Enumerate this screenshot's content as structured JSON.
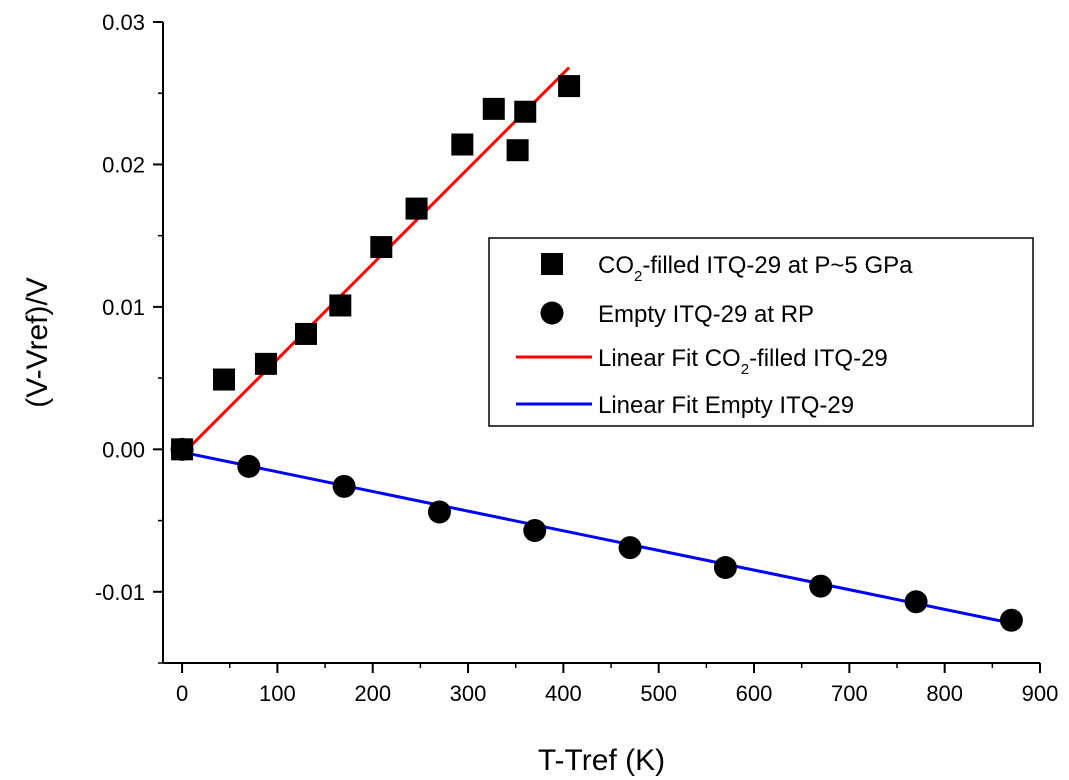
{
  "chart_data": {
    "type": "scatter",
    "xlabel": "T-Tref (K)",
    "ylabel": "(V-Vref)/V",
    "xlim": [
      -20,
      900
    ],
    "ylim": [
      -0.015,
      0.03
    ],
    "x_ticks": [
      0,
      100,
      200,
      300,
      400,
      500,
      600,
      700,
      800,
      900
    ],
    "y_ticks": [
      -0.01,
      0.0,
      0.01,
      0.02,
      0.03
    ],
    "x_tick_labels": [
      "0",
      "100",
      "200",
      "300",
      "400",
      "500",
      "600",
      "700",
      "800",
      "900"
    ],
    "y_tick_labels": [
      "-0.01",
      "0.00",
      "0.01",
      "0.02",
      "0.03"
    ],
    "grid": false,
    "legend_position": "right-middle",
    "series": [
      {
        "name": "CO2-filled ITQ-29 at P~5 GPa",
        "name_parts": {
          "pre": "CO",
          "sub": "2",
          "post": "-filled ITQ-29 at P~5 GPa"
        },
        "marker": "square",
        "color": "#000000",
        "x": [
          0,
          44,
          88,
          130,
          166,
          209,
          246,
          294,
          327,
          352,
          360,
          406
        ],
        "y": [
          0.0,
          0.0049,
          0.006,
          0.0081,
          0.0101,
          0.0142,
          0.0169,
          0.0214,
          0.0239,
          0.021,
          0.0237,
          0.0255
        ]
      },
      {
        "name": "Empty ITQ-29 at RP",
        "marker": "circle",
        "color": "#000000",
        "x": [
          0,
          70,
          170,
          270,
          370,
          470,
          570,
          670,
          770,
          870
        ],
        "y": [
          0.0,
          -0.0012,
          -0.0026,
          -0.0044,
          -0.0057,
          -0.0069,
          -0.0083,
          -0.0096,
          -0.0107,
          -0.012
        ]
      },
      {
        "name": "Linear Fit CO2-filled ITQ-29",
        "name_parts": {
          "pre": "Linear Fit CO",
          "sub": "2",
          "post": "-filled ITQ-29"
        },
        "type": "line",
        "color": "#ff0000",
        "x": [
          10,
          406
        ],
        "y": [
          0.0003,
          0.0268
        ]
      },
      {
        "name": "Linear Fit Empty ITQ-29",
        "type": "line",
        "color": "#0000ff",
        "x": [
          0,
          870
        ],
        "y": [
          -0.0002,
          -0.0122
        ]
      }
    ]
  }
}
